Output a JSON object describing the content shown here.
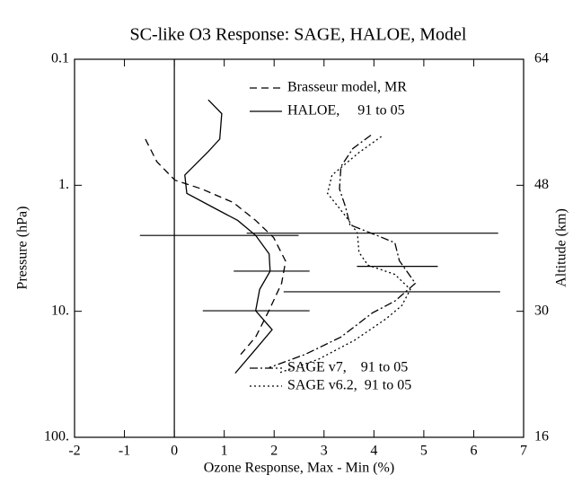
{
  "chart_data": {
    "type": "profile",
    "title": "SC-like O3 Response: SAGE, HALOE, Model",
    "x_label": "Ozone Response, Max - Min (%)",
    "y_label": "Pressure (hPa)",
    "y2_label": "Altitude (km)",
    "xlim": [
      -2,
      7
    ],
    "xticks": [
      -2,
      -1,
      0,
      1,
      2,
      3,
      4,
      5,
      6,
      7
    ],
    "ylim": [
      0.1,
      100
    ],
    "y_log": true,
    "y_reversed": true,
    "yticks": [
      0.1,
      {
        "value": 1,
        "label": "1."
      },
      {
        "value": 10,
        "label": "10."
      },
      {
        "value": 100,
        "label": "100."
      }
    ],
    "y2ticks": [
      16,
      30,
      48,
      64
    ],
    "vline": 0,
    "series": [
      {
        "name": "Brasseur model, MR",
        "color": "#000000",
        "dash": "dashed",
        "values": [
          -0.58,
          -0.35,
          0.01,
          0.55,
          1.18,
          1.63,
          1.99,
          2.23,
          2.15,
          1.9,
          1.63,
          1.33
        ],
        "pressure": [
          0.43,
          0.65,
          0.91,
          1.07,
          1.37,
          1.9,
          2.6,
          4.0,
          6.0,
          9.8,
          16,
          22
        ]
      },
      {
        "name": "HALOE,     91 to 05",
        "color": "#000000",
        "dash": "solid",
        "values": [
          0.68,
          0.95,
          0.91,
          0.68,
          0.21,
          0.25,
          0.82,
          1.27,
          1.63,
          1.9,
          1.92,
          1.71,
          1.63,
          1.96,
          1.63,
          1.22
        ],
        "pressure": [
          0.21,
          0.27,
          0.43,
          0.54,
          0.83,
          1.16,
          1.53,
          1.9,
          2.5,
          3.5,
          4.8,
          6.7,
          9.9,
          14,
          20,
          31
        ]
      },
      {
        "name": "SAGE v7,    91 to 05",
        "color": "#000000",
        "dash": "dashdot",
        "values": [
          3.94,
          3.58,
          3.34,
          3.31,
          3.43,
          3.52,
          4.06,
          4.42,
          4.51,
          4.83,
          4.42,
          3.97,
          3.34,
          2.62,
          1.9
        ],
        "pressure": [
          0.4,
          0.51,
          0.71,
          1.07,
          1.48,
          2.06,
          2.5,
          2.86,
          3.97,
          6.0,
          8.3,
          10.3,
          16,
          22,
          28
        ]
      },
      {
        "name": "SAGE v6.2,  91 to 05",
        "color": "#000000",
        "dash": "dotted",
        "values": [
          4.15,
          3.7,
          3.16,
          3.07,
          3.43,
          3.67,
          3.7,
          3.88,
          4.42,
          4.73,
          4.56,
          4.24,
          3.61,
          2.89,
          2.08
        ],
        "pressure": [
          0.41,
          0.55,
          0.83,
          1.16,
          1.75,
          2.4,
          3.4,
          4.3,
          5.1,
          6.7,
          9.0,
          11.5,
          17,
          24,
          31
        ]
      }
    ],
    "error_bars": [
      {
        "pressure": 2.5,
        "value": 0.9,
        "error": 1.59
      },
      {
        "pressure": 2.4,
        "value": 3.97,
        "error": 2.52
      },
      {
        "pressure": 4.8,
        "value": 1.95,
        "error": 0.76
      },
      {
        "pressure": 4.4,
        "value": 4.47,
        "error": 0.81
      },
      {
        "pressure": 9.9,
        "value": 1.64,
        "error": 1.07
      },
      {
        "pressure": 7.0,
        "value": 4.36,
        "error": 2.17
      }
    ]
  }
}
